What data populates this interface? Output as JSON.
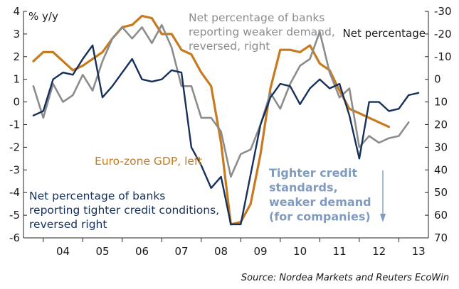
{
  "chart_data": {
    "type": "line",
    "left_axis": {
      "label": "% y/y",
      "min": -6,
      "max": 4,
      "ticks": [
        4,
        3,
        2,
        1,
        0,
        -1,
        -2,
        -3,
        -4,
        -5,
        -6
      ]
    },
    "right_axis": {
      "label": "Net percentage",
      "reversed": true,
      "min": -30,
      "max": 70,
      "ticks": [
        -30,
        -20,
        -10,
        0,
        10,
        20,
        30,
        40,
        50,
        60,
        70
      ]
    },
    "x_axis": {
      "labels": [
        "04",
        "05",
        "06",
        "07",
        "08",
        "09",
        "10",
        "11",
        "12",
        "13"
      ],
      "min": 2003.5,
      "max": 2013.75
    },
    "grid": false,
    "series": [
      {
        "name": "Euro-zone GDP, left",
        "axis": "left",
        "color": "#c87a1e",
        "points": [
          [
            2003.75,
            1.8
          ],
          [
            2004.0,
            2.2
          ],
          [
            2004.25,
            2.2
          ],
          [
            2004.5,
            1.8
          ],
          [
            2004.75,
            1.4
          ],
          [
            2005.0,
            1.6
          ],
          [
            2005.25,
            1.9
          ],
          [
            2005.5,
            2.2
          ],
          [
            2005.75,
            2.8
          ],
          [
            2006.0,
            3.3
          ],
          [
            2006.25,
            3.4
          ],
          [
            2006.5,
            3.8
          ],
          [
            2006.75,
            3.7
          ],
          [
            2007.0,
            3.0
          ],
          [
            2007.25,
            3.0
          ],
          [
            2007.5,
            2.3
          ],
          [
            2007.75,
            2.1
          ],
          [
            2008.0,
            1.3
          ],
          [
            2008.25,
            0.7
          ],
          [
            2008.5,
            -1.8
          ],
          [
            2008.75,
            -5.4
          ],
          [
            2009.0,
            -5.3
          ],
          [
            2009.25,
            -4.5
          ],
          [
            2009.5,
            -2.3
          ],
          [
            2009.75,
            0.6
          ],
          [
            2010.0,
            2.3
          ],
          [
            2010.25,
            2.3
          ],
          [
            2010.5,
            2.2
          ],
          [
            2010.75,
            2.5
          ],
          [
            2011.0,
            1.7
          ],
          [
            2011.25,
            1.4
          ],
          [
            2011.5,
            0.5
          ],
          [
            2011.75,
            -0.3
          ],
          [
            2012.0,
            -0.5
          ],
          [
            2012.25,
            -0.7
          ],
          [
            2012.5,
            -0.9
          ],
          [
            2012.75,
            -1.1
          ]
        ]
      },
      {
        "name": "Net percentage of banks reporting weaker demand, reversed, right",
        "axis": "right",
        "color": "#8c8c8c",
        "points": [
          [
            2003.75,
            3
          ],
          [
            2004.0,
            17
          ],
          [
            2004.25,
            2
          ],
          [
            2004.5,
            10
          ],
          [
            2004.75,
            7
          ],
          [
            2005.0,
            -2
          ],
          [
            2005.25,
            5
          ],
          [
            2005.5,
            -8
          ],
          [
            2005.75,
            -18
          ],
          [
            2006.0,
            -23
          ],
          [
            2006.25,
            -18
          ],
          [
            2006.5,
            -23
          ],
          [
            2006.75,
            -16
          ],
          [
            2007.0,
            -24
          ],
          [
            2007.25,
            -14
          ],
          [
            2007.5,
            3
          ],
          [
            2007.75,
            3
          ],
          [
            2008.0,
            17
          ],
          [
            2008.25,
            17
          ],
          [
            2008.5,
            23
          ],
          [
            2008.75,
            43
          ],
          [
            2009.0,
            33
          ],
          [
            2009.25,
            31
          ],
          [
            2009.5,
            20
          ],
          [
            2009.75,
            6
          ],
          [
            2010.0,
            13
          ],
          [
            2010.25,
            2
          ],
          [
            2010.5,
            -6
          ],
          [
            2010.75,
            -9
          ],
          [
            2011.0,
            -21
          ],
          [
            2011.25,
            -3
          ],
          [
            2011.5,
            8
          ],
          [
            2011.75,
            4
          ],
          [
            2012.0,
            30
          ],
          [
            2012.25,
            25
          ],
          [
            2012.5,
            28
          ],
          [
            2012.75,
            26
          ],
          [
            2013.0,
            25
          ],
          [
            2013.25,
            19
          ]
        ]
      },
      {
        "name": "Net percentage of banks reporting tighter credit conditions, reversed right",
        "axis": "right",
        "color": "#16305c",
        "points": [
          [
            2003.75,
            16
          ],
          [
            2004.0,
            14
          ],
          [
            2004.25,
            0
          ],
          [
            2004.5,
            -3
          ],
          [
            2004.75,
            -2
          ],
          [
            2005.0,
            -9
          ],
          [
            2005.25,
            -15
          ],
          [
            2005.5,
            8
          ],
          [
            2005.75,
            3
          ],
          [
            2006.0,
            -3
          ],
          [
            2006.25,
            -9
          ],
          [
            2006.5,
            0
          ],
          [
            2006.75,
            1
          ],
          [
            2007.0,
            0
          ],
          [
            2007.25,
            -4
          ],
          [
            2007.5,
            -3
          ],
          [
            2007.75,
            30
          ],
          [
            2008.0,
            38
          ],
          [
            2008.25,
            48
          ],
          [
            2008.5,
            43
          ],
          [
            2008.75,
            64
          ],
          [
            2009.0,
            64
          ],
          [
            2009.25,
            42
          ],
          [
            2009.5,
            20
          ],
          [
            2009.75,
            8
          ],
          [
            2010.0,
            2
          ],
          [
            2010.25,
            3
          ],
          [
            2010.5,
            11
          ],
          [
            2010.75,
            4
          ],
          [
            2011.0,
            0
          ],
          [
            2011.25,
            4
          ],
          [
            2011.5,
            2
          ],
          [
            2011.75,
            16
          ],
          [
            2012.0,
            35
          ],
          [
            2012.25,
            10
          ],
          [
            2012.5,
            10
          ],
          [
            2012.75,
            14
          ],
          [
            2013.0,
            13
          ],
          [
            2013.25,
            7
          ],
          [
            2013.5,
            6
          ]
        ]
      }
    ],
    "annotations": [
      {
        "key": "gdp",
        "lines": [
          "Euro-zone GDP, left"
        ],
        "color": "#c87a1e"
      },
      {
        "key": "demand",
        "lines": [
          "Net percentage of banks",
          "reporting weaker demand,",
          "reversed, right"
        ],
        "color": "#8c8c8c"
      },
      {
        "key": "credit",
        "lines": [
          "Net percentage of banks",
          "reporting tighter credit conditions,",
          "reversed right"
        ],
        "color": "#16305c"
      },
      {
        "key": "tighter",
        "lines": [
          "Tighter credit",
          "standards,",
          "weaker demand",
          "(for companies)"
        ],
        "color": "#7f9cc0"
      }
    ],
    "arrow_color": "#7f9cc0",
    "source": "Source: Nordea Markets and Reuters EcoWin"
  }
}
